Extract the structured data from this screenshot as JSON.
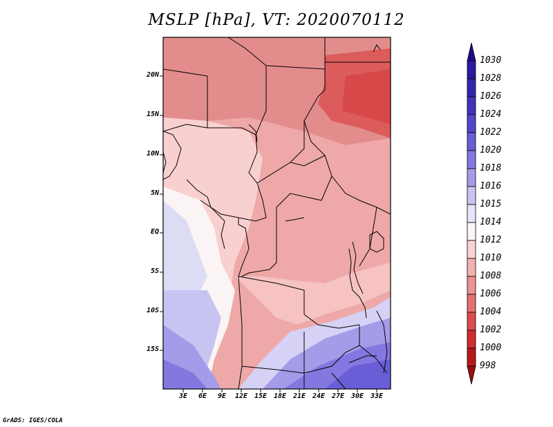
{
  "title": "MSLP [hPa], VT: 2020070112",
  "lat_labels": [
    "20N",
    "15N",
    "10N",
    "5N",
    "EQ",
    "5S",
    "10S",
    "15S"
  ],
  "lon_labels": [
    "3E",
    "6E",
    "9E",
    "12E",
    "15E",
    "18E",
    "21E",
    "24E",
    "27E",
    "30E",
    "33E"
  ],
  "colorbar": {
    "labels": [
      "1030",
      "1028",
      "1026",
      "1024",
      "1022",
      "1020",
      "1018",
      "1016",
      "1015",
      "1014",
      "1012",
      "1010",
      "1008",
      "1006",
      "1004",
      "1002",
      "1000",
      "998"
    ],
    "colors": [
      "#1e0a8c",
      "#2a1b9e",
      "#3426ac",
      "#4232bc",
      "#5446c8",
      "#6a5ed6",
      "#8478e0",
      "#a49ce8",
      "#c8c4f2",
      "#e6e4fa",
      "#fbf4f4",
      "#f9d2d2",
      "#f2b2b2",
      "#ec9292",
      "#e47272",
      "#dc4c4c",
      "#d02c2c",
      "#b81818",
      "#9c0d0d"
    ]
  },
  "credit": "GrADS: IGES/COLA"
}
